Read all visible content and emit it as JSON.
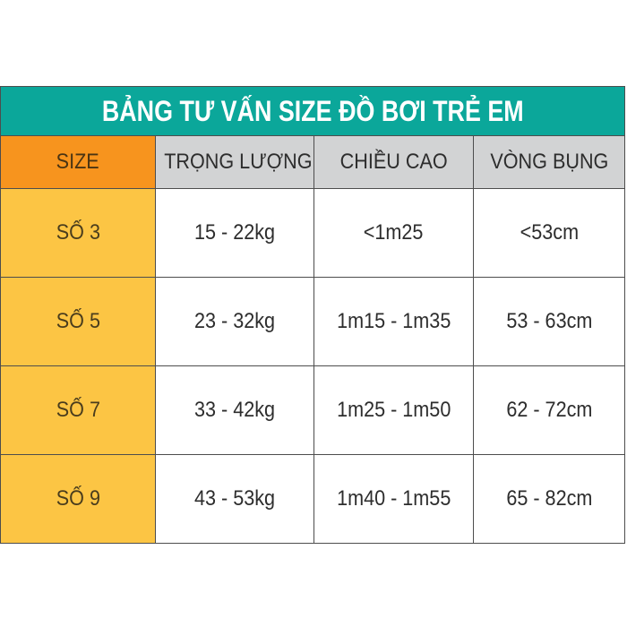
{
  "chart_data": {
    "type": "table",
    "title": "BẢNG TƯ VẤN SIZE ĐỒ BƠI TRẺ EM",
    "columns": [
      "SIZE",
      "TRỌNG LƯỢNG",
      "CHIỀU CAO",
      "VÒNG BỤNG"
    ],
    "rows": [
      [
        "SỐ 3",
        "15 - 22kg",
        "<1m25",
        "<53cm"
      ],
      [
        "SỐ 5",
        "23 - 32kg",
        "1m15 - 1m35",
        "53 - 63cm"
      ],
      [
        "SỐ 7",
        "33 - 42kg",
        "1m25 - 1m50",
        "62 - 72cm"
      ],
      [
        "SỐ 9",
        "43 - 53kg",
        "1m40 - 1m55",
        "65 - 82cm"
      ]
    ]
  },
  "colors": {
    "teal": "#0ba79a",
    "orange": "#f7941e",
    "yellow": "#fcc544",
    "gray_header": "#d2d3d4",
    "border": "#4d4d4d",
    "text_dark": "#2d2d2d",
    "title_text": "#ffffff"
  }
}
